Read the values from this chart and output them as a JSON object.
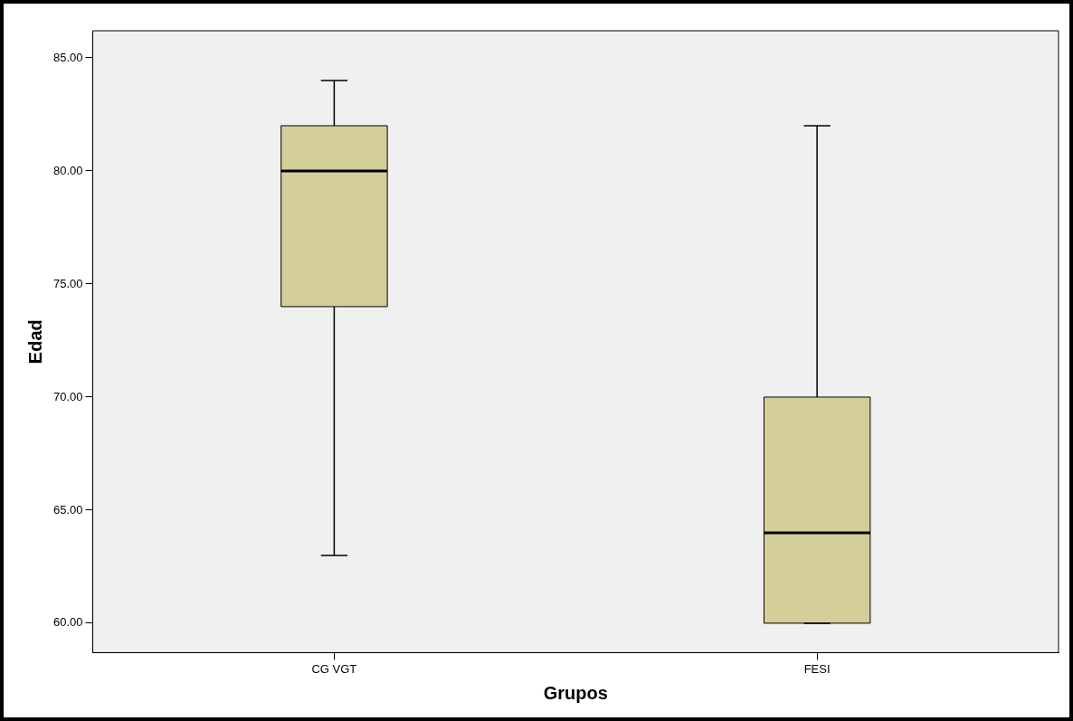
{
  "chart_data": {
    "type": "box",
    "xlabel": "Grupos",
    "ylabel": "Edad",
    "categories": [
      "CG VGT",
      "FESI"
    ],
    "boxes": [
      {
        "low": 63,
        "q1": 74,
        "median": 80,
        "q3": 82,
        "high": 84
      },
      {
        "low": 60,
        "q1": 60,
        "median": 64,
        "q3": 70,
        "high": 82
      }
    ],
    "color": "#d4cf98",
    "ylim": [
      58.7,
      86.2
    ],
    "yticks": [
      {
        "value": 60,
        "label": "60.00"
      },
      {
        "value": 65,
        "label": "65.00"
      },
      {
        "value": 70,
        "label": "70.00"
      },
      {
        "value": 75,
        "label": "75.00"
      },
      {
        "value": 80,
        "label": "80.00"
      },
      {
        "value": 85,
        "label": "85.00"
      }
    ],
    "grid": false,
    "legend": false
  }
}
